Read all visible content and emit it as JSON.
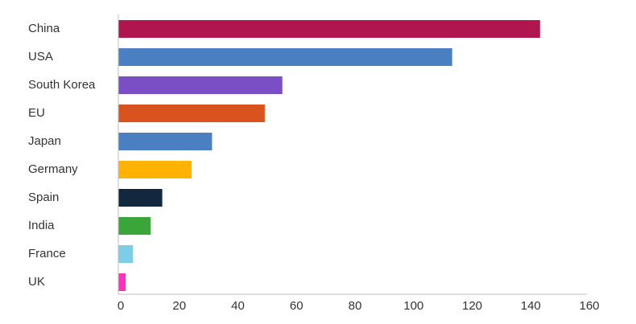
{
  "chart_data": {
    "type": "bar",
    "orientation": "horizontal",
    "categories": [
      "China",
      "USA",
      "South Korea",
      "EU",
      "Japan",
      "Germany",
      "Spain",
      "India",
      "France",
      "UK"
    ],
    "values": [
      144,
      114,
      56,
      50,
      32,
      25,
      15,
      11,
      5,
      2.5
    ],
    "colors": [
      "#b0154f",
      "#4a7fc1",
      "#7a4fc6",
      "#d9531e",
      "#4a7fc1",
      "#ffb300",
      "#13283f",
      "#3aa63a",
      "#7ecde6",
      "#ff2fbf"
    ],
    "xlim": [
      0,
      160
    ],
    "xticks": [
      0,
      20,
      40,
      60,
      80,
      100,
      120,
      140,
      160
    ],
    "grid": false,
    "legend": "none"
  }
}
